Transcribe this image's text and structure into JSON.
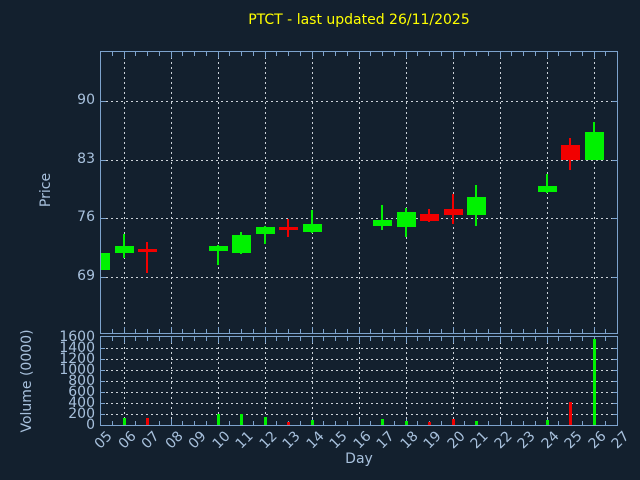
{
  "colors": {
    "background": "#13202e",
    "axis": "#7da3cd",
    "grid": "#ccd2d9",
    "text": "#a7c0dc",
    "title": "#ffff00",
    "up": "#00f200",
    "down": "#f20000"
  },
  "chart_data": {
    "type": "candlestick",
    "title": "PTCT - last updated 26/11/2025",
    "xlabel": "Day",
    "x_tick_labels": [
      "05",
      "06",
      "07",
      "08",
      "09",
      "10",
      "11",
      "12",
      "13",
      "14",
      "15",
      "16",
      "17",
      "18",
      "19",
      "20",
      "21",
      "22",
      "23",
      "24",
      "25",
      "26",
      "27"
    ],
    "grid": "dotted; horizontal at price/volume ticks, vertical every 2 days",
    "legend": "none",
    "price_panel": {
      "ylabel": "Price",
      "y_ticks": [
        69,
        76,
        83,
        90
      ],
      "ylim": [
        62,
        96
      ]
    },
    "volume_panel": {
      "ylabel": "Volume (0000)",
      "y_ticks": [
        0,
        200,
        400,
        600,
        800,
        1000,
        1200,
        1400,
        1600
      ],
      "ylim": [
        0,
        1600
      ]
    },
    "ohlcv": [
      {
        "day": "05",
        "open": 69.8,
        "high": 71.9,
        "low": 69.7,
        "close": 71.8,
        "volume": 0
      },
      {
        "day": "06",
        "open": 71.8,
        "high": 74.1,
        "low": 71.2,
        "close": 72.7,
        "volume": 130
      },
      {
        "day": "07",
        "open": 72.3,
        "high": 73.1,
        "low": 69.4,
        "close": 71.9,
        "volume": 130
      },
      {
        "day": "10",
        "open": 72.1,
        "high": 72.8,
        "low": 70.4,
        "close": 72.7,
        "volume": 195
      },
      {
        "day": "11",
        "open": 71.8,
        "high": 74.3,
        "low": 71.7,
        "close": 74.0,
        "volume": 195
      },
      {
        "day": "12",
        "open": 74.1,
        "high": 75.1,
        "low": 72.9,
        "close": 75.0,
        "volume": 140
      },
      {
        "day": "13",
        "open": 75.0,
        "high": 75.9,
        "low": 73.7,
        "close": 74.6,
        "volume": 55
      },
      {
        "day": "14",
        "open": 74.3,
        "high": 77.0,
        "low": 74.2,
        "close": 75.3,
        "volume": 100
      },
      {
        "day": "17",
        "open": 75.0,
        "high": 77.6,
        "low": 74.6,
        "close": 75.8,
        "volume": 110
      },
      {
        "day": "18",
        "open": 74.9,
        "high": 77.2,
        "low": 73.7,
        "close": 76.7,
        "volume": 75
      },
      {
        "day": "19",
        "open": 76.5,
        "high": 77.1,
        "low": 75.5,
        "close": 75.6,
        "volume": 60
      },
      {
        "day": "20",
        "open": 77.1,
        "high": 78.9,
        "low": 75.3,
        "close": 76.4,
        "volume": 110
      },
      {
        "day": "21",
        "open": 76.4,
        "high": 80.0,
        "low": 75.1,
        "close": 78.5,
        "volume": 80
      },
      {
        "day": "24",
        "open": 79.1,
        "high": 81.3,
        "low": 79.0,
        "close": 79.9,
        "volume": 90
      },
      {
        "day": "25",
        "open": 84.8,
        "high": 85.6,
        "low": 81.8,
        "close": 83.0,
        "volume": 420
      },
      {
        "day": "26",
        "open": 83.0,
        "high": 87.5,
        "low": 82.9,
        "close": 86.3,
        "volume": 1560
      }
    ]
  }
}
